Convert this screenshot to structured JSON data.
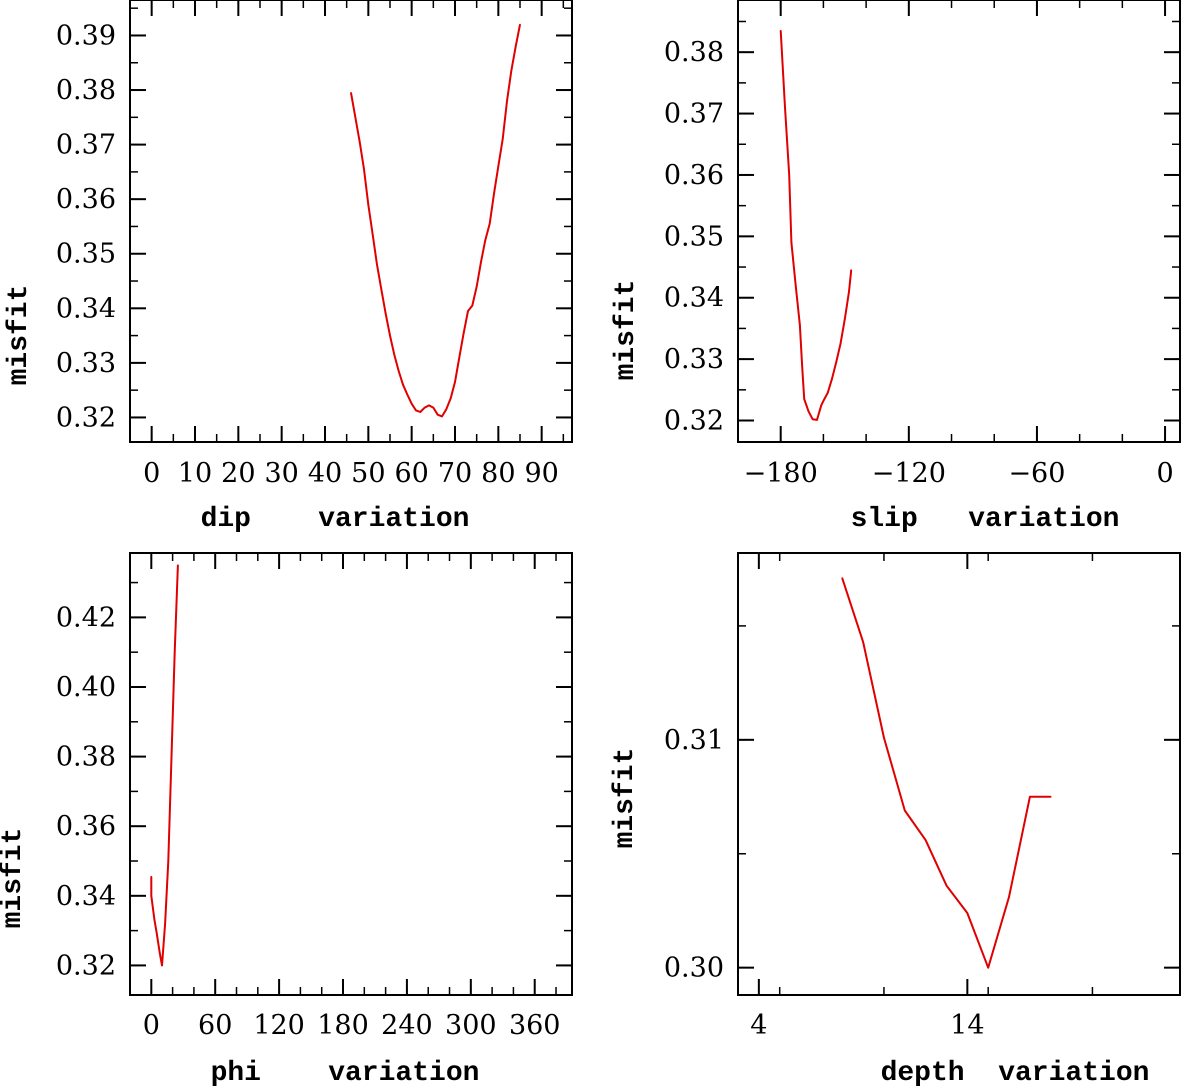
{
  "colors": {
    "line": "#e00000",
    "axis": "#000000",
    "background": "#ffffff"
  },
  "chart_data": [
    {
      "type": "line",
      "xlabel": "dip    variation",
      "ylabel": "misfit",
      "xlim": [
        -5,
        97
      ],
      "ylim": [
        0.3155,
        0.3965
      ],
      "xticks": [
        0,
        10,
        20,
        30,
        40,
        50,
        60,
        70,
        80,
        90
      ],
      "xtick_labels": [
        "0",
        "10",
        "20",
        "30",
        "40",
        "50",
        "60",
        "70",
        "80",
        "90"
      ],
      "yticks": [
        0.32,
        0.33,
        0.34,
        0.35,
        0.36,
        0.37,
        0.38,
        0.39
      ],
      "ytick_labels": [
        "0.32",
        "0.33",
        "0.34",
        "0.35",
        "0.36",
        "0.37",
        "0.38",
        "0.39"
      ],
      "x_minor": 5,
      "y_minor": 0.005,
      "series": [
        {
          "x": [
            46,
            48,
            49,
            50,
            51,
            52,
            53,
            54,
            55,
            56,
            57,
            58,
            59,
            60,
            61,
            62,
            63,
            64,
            65,
            66,
            67,
            68,
            69,
            70,
            71,
            72,
            73,
            74,
            75,
            76,
            77,
            78,
            79,
            80,
            81,
            82,
            83,
            84,
            85
          ],
          "y": [
            0.3795,
            0.3705,
            0.3655,
            0.359,
            0.3535,
            0.348,
            0.3435,
            0.339,
            0.335,
            0.3315,
            0.3285,
            0.326,
            0.3242,
            0.3225,
            0.3213,
            0.321,
            0.3218,
            0.3222,
            0.3218,
            0.3205,
            0.3202,
            0.3215,
            0.3235,
            0.3265,
            0.331,
            0.3355,
            0.3395,
            0.3405,
            0.344,
            0.3485,
            0.3525,
            0.3555,
            0.361,
            0.366,
            0.371,
            0.378,
            0.3835,
            0.388,
            0.392
          ]
        }
      ]
    },
    {
      "type": "line",
      "xlabel": "slip   variation",
      "ylabel": "misfit",
      "xlim": [
        -200,
        7
      ],
      "ylim": [
        0.3165,
        0.3885
      ],
      "xticks": [
        -180,
        -120,
        -60,
        0
      ],
      "xtick_labels": [
        "−180",
        "−120",
        "−60",
        "0"
      ],
      "yticks": [
        0.32,
        0.33,
        0.34,
        0.35,
        0.36,
        0.37,
        0.38
      ],
      "ytick_labels": [
        "0.32",
        "0.33",
        "0.34",
        "0.35",
        "0.36",
        "0.37",
        "0.38"
      ],
      "x_minor": 20,
      "y_minor": 0.005,
      "series": [
        {
          "x": [
            -180,
            -178,
            -176,
            -175,
            -173,
            -171,
            -170,
            -169,
            -167,
            -165,
            -163,
            -161,
            -160,
            -158,
            -156,
            -154,
            -152,
            -150,
            -148,
            -147
          ],
          "y": [
            0.3835,
            0.371,
            0.36,
            0.349,
            0.342,
            0.3355,
            0.329,
            0.3235,
            0.3215,
            0.3202,
            0.3201,
            0.3225,
            0.3232,
            0.3245,
            0.3268,
            0.3295,
            0.3325,
            0.3365,
            0.341,
            0.3445
          ]
        }
      ]
    },
    {
      "type": "line",
      "xlabel": "phi    variation",
      "ylabel": "misfit",
      "xlim": [
        -20,
        395
      ],
      "ylim": [
        0.3115,
        0.4385
      ],
      "xticks": [
        0,
        60,
        120,
        180,
        240,
        300,
        360
      ],
      "xtick_labels": [
        "0",
        "60",
        "120",
        "180",
        "240",
        "300",
        "360"
      ],
      "yticks": [
        0.32,
        0.34,
        0.36,
        0.38,
        0.4,
        0.42
      ],
      "ytick_labels": [
        "0.32",
        "0.34",
        "0.36",
        "0.38",
        "0.40",
        "0.42"
      ],
      "x_minor": 20,
      "y_minor": 0.01,
      "series": [
        {
          "x": [
            0,
            0,
            3,
            5,
            8,
            10,
            13,
            16,
            19,
            22,
            25
          ],
          "y": [
            0.3455,
            0.34,
            0.333,
            0.3295,
            0.3235,
            0.32,
            0.332,
            0.35,
            0.38,
            0.41,
            0.435
          ]
        }
      ]
    },
    {
      "type": "line",
      "xlabel": "depth  variation",
      "ylabel": "misfit",
      "xlim": [
        3,
        24.2
      ],
      "ylim": [
        0.2988,
        0.3182
      ],
      "xticks": [
        4,
        14
      ],
      "xtick_labels": [
        "4",
        "14"
      ],
      "yticks": [
        0.3,
        0.31
      ],
      "ytick_labels": [
        "0.30",
        "0.31"
      ],
      "x_minor": 5,
      "y_minor": 0.005,
      "series": [
        {
          "x": [
            8,
            9,
            10,
            11,
            12,
            13,
            14,
            15,
            16,
            17,
            18
          ],
          "y": [
            0.3171,
            0.3143,
            0.3101,
            0.3069,
            0.3056,
            0.3036,
            0.3024,
            0.3,
            0.3031,
            0.3075,
            0.3075
          ]
        }
      ]
    }
  ]
}
